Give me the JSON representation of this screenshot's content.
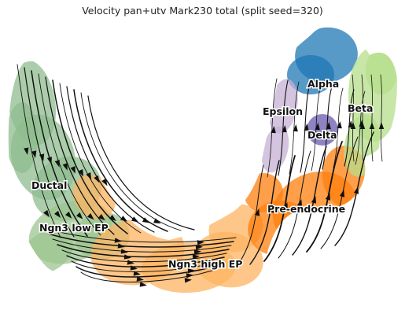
{
  "title": "Velocity pan+utv Mark230 total (split seed=320)",
  "chart_data": {
    "type": "scatter",
    "title": "Velocity pan+utv Mark230 total (split seed=320)",
    "xlabel": "",
    "ylabel": "",
    "axes_visible": false,
    "grid": false,
    "legend": "none (cluster labels drawn on plot)",
    "overlay": "velocity streamlines with arrowheads",
    "clusters": [
      {
        "label": "Ductal",
        "color": "#8fbc8f"
      },
      {
        "label": "Ngn3 low EP",
        "color": "#9cc58f"
      },
      {
        "label": "Ngn3 high EP",
        "color": "#fdb462"
      },
      {
        "label": "Pre-endocrine",
        "color": "#ff7f0e"
      },
      {
        "label": "Alpha",
        "color": "#1f77b4"
      },
      {
        "label": "Beta",
        "color": "#b5de8a"
      },
      {
        "label": "Delta",
        "color": "#6a5aad"
      },
      {
        "label": "Epsilon",
        "color": "#c5b0d5"
      }
    ]
  }
}
